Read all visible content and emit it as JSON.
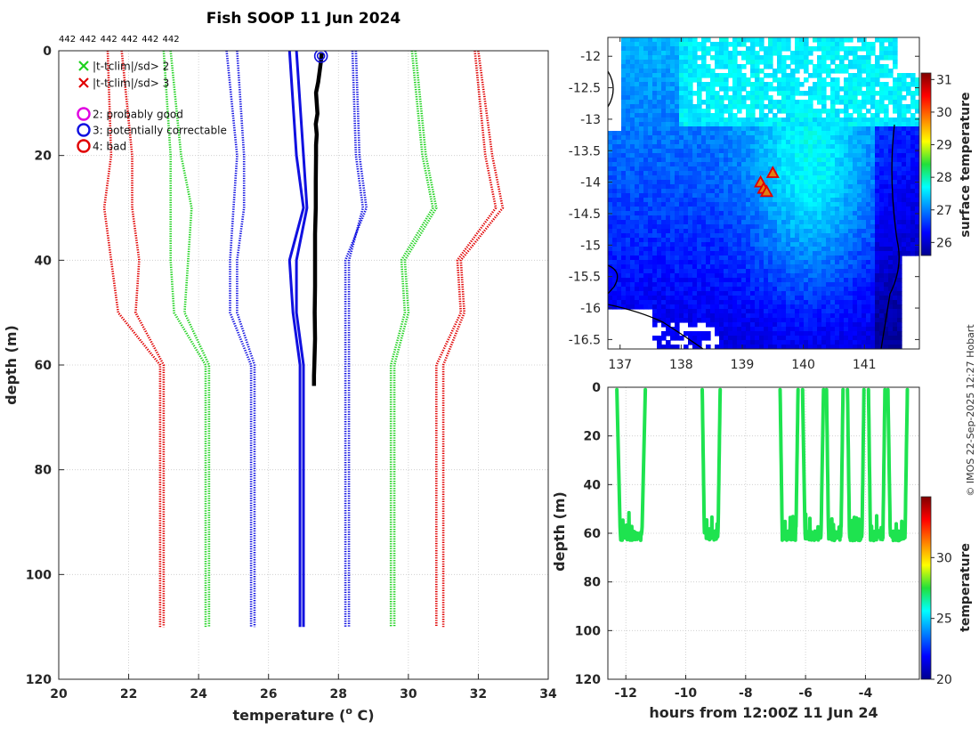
{
  "title": "Fish SOOP 11 Jun 2024",
  "counts": [
    "442",
    "442",
    "442",
    "442",
    "442",
    "442",
    "442"
  ],
  "credit": "© IMOS 22-Sep-2025 12:27 Hobart",
  "legend": {
    "items": [
      {
        "marker": "x",
        "color": "#1fd21f",
        "label": "|t-tclim|/sd> 2"
      },
      {
        "marker": "x",
        "color": "#e00000",
        "label": "|t-tclim|/sd> 3"
      },
      {
        "marker": "o",
        "color": "#e000e0",
        "label": "2: probably good"
      },
      {
        "marker": "o",
        "color": "#1010e0",
        "label": "3: potentially correctable"
      },
      {
        "marker": "o",
        "color": "#e00000",
        "label": "4: bad"
      }
    ]
  },
  "chart_data": [
    {
      "id": "profile",
      "type": "line",
      "xlabel": "temperature (",
      "xlabel_sup": "o",
      "xlabel_tail": " C)",
      "ylabel": "depth (m)",
      "xlim": [
        20,
        34
      ],
      "ylim": [
        0,
        120
      ],
      "xticks": [
        20,
        22,
        24,
        26,
        28,
        30,
        32,
        34
      ],
      "yticks": [
        0,
        20,
        40,
        60,
        80,
        100,
        120
      ],
      "y_reversed": true,
      "grid": true,
      "climatology_depths": [
        0,
        20,
        30,
        40,
        50,
        60,
        110
      ],
      "series": [
        {
          "name": "clim-3sd-a",
          "color": "#e00000",
          "style": "dotted",
          "values": [
            21.4,
            21.5,
            21.3,
            21.5,
            21.7,
            22.9,
            22.9
          ]
        },
        {
          "name": "clim-3sd-b",
          "color": "#e00000",
          "style": "dotted",
          "values": [
            21.8,
            22.1,
            22.1,
            22.3,
            22.2,
            23.0,
            23.0
          ]
        },
        {
          "name": "clim-2sd-a",
          "color": "#1fd21f",
          "style": "dotted",
          "values": [
            23.0,
            23.2,
            23.2,
            23.2,
            23.3,
            24.2,
            24.2
          ]
        },
        {
          "name": "clim-2sd-b",
          "color": "#1fd21f",
          "style": "dotted",
          "values": [
            23.2,
            23.5,
            23.8,
            23.7,
            23.6,
            24.3,
            24.3
          ]
        },
        {
          "name": "clim-1sd-a",
          "color": "#1010e0",
          "style": "dotted",
          "values": [
            24.8,
            25.1,
            25.0,
            24.9,
            24.9,
            25.5,
            25.5
          ]
        },
        {
          "name": "clim-1sd-b",
          "color": "#1010e0",
          "style": "dotted",
          "values": [
            25.1,
            25.3,
            25.3,
            25.1,
            25.1,
            25.6,
            25.6
          ]
        },
        {
          "name": "clim-mean-a",
          "color": "#1010e0",
          "style": "solid",
          "values": [
            26.6,
            26.8,
            27.0,
            26.6,
            26.7,
            26.9,
            26.9
          ]
        },
        {
          "name": "clim-mean-b",
          "color": "#1010e0",
          "style": "solid",
          "values": [
            26.8,
            27.0,
            27.1,
            26.8,
            26.8,
            27.0,
            27.0
          ]
        },
        {
          "name": "clim+1sd-a",
          "color": "#1010e0",
          "style": "dotted",
          "values": [
            28.5,
            28.6,
            28.8,
            28.2,
            28.2,
            28.2,
            28.2
          ]
        },
        {
          "name": "clim+1sd-b",
          "color": "#1010e0",
          "style": "dotted",
          "values": [
            28.4,
            28.5,
            28.7,
            28.3,
            28.3,
            28.3,
            28.3
          ]
        },
        {
          "name": "clim+2sd-a",
          "color": "#1fd21f",
          "style": "dotted",
          "values": [
            30.1,
            30.4,
            30.7,
            29.8,
            29.9,
            29.5,
            29.5
          ]
        },
        {
          "name": "clim+2sd-b",
          "color": "#1fd21f",
          "style": "dotted",
          "values": [
            30.2,
            30.5,
            30.8,
            29.9,
            30.0,
            29.6,
            29.6
          ]
        },
        {
          "name": "clim+3sd-a",
          "color": "#e00000",
          "style": "dotted",
          "values": [
            31.9,
            32.2,
            32.5,
            31.4,
            31.5,
            30.8,
            30.8
          ]
        },
        {
          "name": "clim+3sd-b",
          "color": "#e00000",
          "style": "dotted",
          "values": [
            32.0,
            32.4,
            32.7,
            31.5,
            31.6,
            31.0,
            31.0
          ]
        }
      ],
      "observed": {
        "name": "profile",
        "color": "#000000",
        "depth": [
          0.5,
          2,
          4,
          6,
          8,
          10,
          12,
          14,
          16,
          18,
          20,
          25,
          30,
          35,
          40,
          45,
          50,
          55,
          60,
          62,
          64
        ],
        "temp": [
          27.52,
          27.5,
          27.46,
          27.42,
          27.36,
          27.38,
          27.4,
          27.35,
          27.38,
          27.36,
          27.36,
          27.35,
          27.35,
          27.33,
          27.33,
          27.33,
          27.32,
          27.33,
          27.31,
          27.3,
          27.3
        ]
      },
      "flag_marker": {
        "temp": 27.5,
        "depth": 1,
        "flag": "3: potentially correctable",
        "color": "#1010e0"
      }
    },
    {
      "id": "sst-map",
      "type": "heatmap",
      "xlabel": "",
      "ylabel": "",
      "xlim": [
        136.8,
        141.9
      ],
      "ylim": [
        -16.65,
        -11.7
      ],
      "xticks": [
        137,
        138,
        139,
        140,
        141
      ],
      "yticks": [
        -12,
        -12.5,
        -13,
        -13.5,
        -14,
        -14.5,
        -15,
        -15.5,
        -16,
        -16.5
      ],
      "ytick_labels": [
        "-12",
        "-12.5",
        "-13",
        "-13.5",
        "-14",
        "-14.5",
        "-15",
        "-15.5",
        "-16",
        "-16.5"
      ],
      "colorbar": {
        "label": "surface temperature",
        "min": 25.6,
        "max": 31.2,
        "ticks": [
          26,
          27,
          28,
          29,
          30,
          31
        ]
      },
      "stations": [
        {
          "lon": 139.5,
          "lat": -13.85
        },
        {
          "lon": 139.3,
          "lat": -14.0
        },
        {
          "lon": 139.35,
          "lat": -14.1
        },
        {
          "lon": 139.4,
          "lat": -14.15
        }
      ]
    },
    {
      "id": "depth-time",
      "type": "scatter",
      "xlabel": "hours from 12:00Z 11 Jun 24",
      "ylabel": "depth (m)",
      "xlim": [
        -12.6,
        -2.2
      ],
      "ylim": [
        0,
        120
      ],
      "xticks": [
        -12,
        -10,
        -8,
        -6,
        -4
      ],
      "yticks": [
        0,
        20,
        40,
        60,
        80,
        100,
        120
      ],
      "y_reversed": true,
      "colorbar": {
        "label": "temperature",
        "min": 20,
        "max": 35,
        "ticks": [
          20,
          25,
          30
        ]
      },
      "point_temperature": 27.3,
      "dives": [
        {
          "start": -12.3,
          "end": -11.35
        },
        {
          "start": -9.45,
          "end": -8.85
        },
        {
          "start": -6.85,
          "end": -6.25
        },
        {
          "start": -6.1,
          "end": -5.4
        },
        {
          "start": -5.3,
          "end": -4.75
        },
        {
          "start": -4.6,
          "end": -4.05
        },
        {
          "start": -3.9,
          "end": -3.35
        },
        {
          "start": -3.25,
          "end": -2.6
        }
      ]
    }
  ]
}
